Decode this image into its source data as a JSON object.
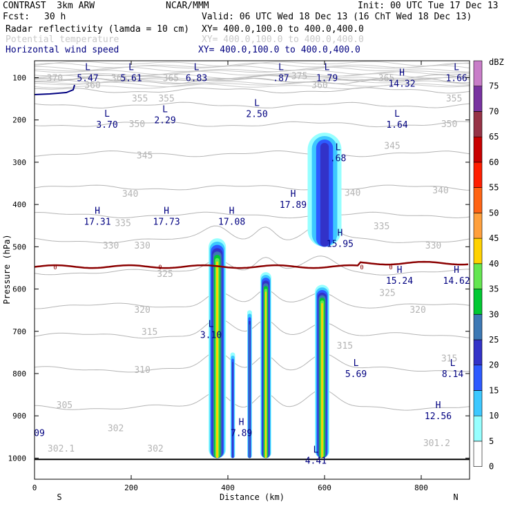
{
  "header": {
    "model": "CONTRAST  3km ARW",
    "org": "NCAR/MMM",
    "init": "Init: 00 UTC Tue 17 Dec 13",
    "fcst_label": "Fcst:",
    "fcst_value": "30 h",
    "valid": "Valid: 06 UTC Wed 18 Dec 13 (16 ChT Wed 18 Dec 13)",
    "fields": [
      {
        "name": "Radar reflectivity (lamda = 10 cm)",
        "xy": "XY= 400.0,100.0 to 400.0,400.0",
        "style": "black"
      },
      {
        "name": "Potential temperature",
        "xy": "XY= 400.0,100.0 to 400.0,400.0",
        "style": "dim"
      },
      {
        "name": "Horizontal wind speed",
        "xy": "XY= 400.0,100.0 to 400.0,400.0",
        "style": "blue"
      }
    ]
  },
  "chart_data": {
    "type": "cross-section",
    "xlabel": "Distance (km)",
    "ylabel": "Pressure (hPa)",
    "xlim": [
      0,
      900
    ],
    "ylim": [
      1050,
      60
    ],
    "xticks": [
      0,
      200,
      400,
      600,
      800
    ],
    "yticks": [
      100,
      200,
      300,
      400,
      500,
      600,
      700,
      800,
      900,
      1000
    ],
    "end_labels": {
      "left": "S",
      "right": "N"
    },
    "colorbar": {
      "unit": "dBZ",
      "levels": [
        "0",
        "5",
        "10",
        "15",
        "20",
        "25",
        "30",
        "35",
        "40",
        "45",
        "50",
        "55",
        "60",
        "65",
        "70",
        "75"
      ],
      "colors": [
        "#ffffff",
        "#96ffff",
        "#3cc8ff",
        "#2d5aff",
        "#3232c8",
        "#3c78b4",
        "#00c832",
        "#64e650",
        "#ffd200",
        "#ffa03c",
        "#ff6414",
        "#ff1e00",
        "#c80000",
        "#963246",
        "#7832a0",
        "#c87dc8"
      ]
    },
    "theta_contours": [
      {
        "value": "370",
        "p": 100
      },
      {
        "value": "365",
        "p": 108
      },
      {
        "value": "360",
        "p": 130
      },
      {
        "value": "355",
        "p": 165
      },
      {
        "value": "350",
        "p": 210
      },
      {
        "value": "345",
        "p": 280
      },
      {
        "value": "340",
        "p": 360
      },
      {
        "value": "335",
        "p": 425
      },
      {
        "value": "330",
        "p": 485
      },
      {
        "value": "325",
        "p": 560
      },
      {
        "value": "320",
        "p": 640
      },
      {
        "value": "315",
        "p": 710
      },
      {
        "value": "310",
        "p": 790
      },
      {
        "value": "305",
        "p": 880
      }
    ],
    "theta_labels": [
      {
        "text": "370",
        "x": 42,
        "p": 102
      },
      {
        "text": "365",
        "x": 175,
        "p": 102
      },
      {
        "text": "365",
        "x": 282,
        "p": 102
      },
      {
        "text": "375",
        "x": 548,
        "p": 97
      },
      {
        "text": "365",
        "x": 728,
        "p": 102
      },
      {
        "text": "360",
        "x": 120,
        "p": 118
      },
      {
        "text": "360",
        "x": 590,
        "p": 118
      },
      {
        "text": "355",
        "x": 218,
        "p": 150
      },
      {
        "text": "355",
        "x": 273,
        "p": 150
      },
      {
        "text": "355",
        "x": 868,
        "p": 150
      },
      {
        "text": "350",
        "x": 212,
        "p": 210
      },
      {
        "text": "350",
        "x": 858,
        "p": 210
      },
      {
        "text": "345",
        "x": 228,
        "p": 285
      },
      {
        "text": "345",
        "x": 740,
        "p": 262
      },
      {
        "text": "340",
        "x": 198,
        "p": 375
      },
      {
        "text": "340",
        "x": 658,
        "p": 373
      },
      {
        "text": "340",
        "x": 840,
        "p": 367
      },
      {
        "text": "335",
        "x": 183,
        "p": 445
      },
      {
        "text": "335",
        "x": 718,
        "p": 452
      },
      {
        "text": "330",
        "x": 158,
        "p": 498
      },
      {
        "text": "330",
        "x": 223,
        "p": 498
      },
      {
        "text": "330",
        "x": 825,
        "p": 498
      },
      {
        "text": "325",
        "x": 270,
        "p": 565
      },
      {
        "text": "325",
        "x": 730,
        "p": 610
      },
      {
        "text": "320",
        "x": 223,
        "p": 650
      },
      {
        "text": "320",
        "x": 793,
        "p": 650
      },
      {
        "text": "315",
        "x": 238,
        "p": 702
      },
      {
        "text": "315",
        "x": 642,
        "p": 735
      },
      {
        "text": "315",
        "x": 858,
        "p": 765
      },
      {
        "text": "310",
        "x": 223,
        "p": 792
      },
      {
        "text": "305",
        "x": 62,
        "p": 875
      },
      {
        "text": "302",
        "x": 168,
        "p": 930
      },
      {
        "text": "302",
        "x": 250,
        "p": 978
      },
      {
        "text": "302.1",
        "x": 55,
        "p": 978
      },
      {
        "text": "301.2",
        "x": 832,
        "p": 965
      }
    ],
    "zero_line": {
      "label": "0",
      "p": 547
    },
    "wind_extrema": [
      {
        "kind": "L",
        "value": "5.47",
        "x": 110,
        "p": 95
      },
      {
        "kind": "L",
        "value": "5.61",
        "x": 200,
        "p": 95
      },
      {
        "kind": "L",
        "value": "6.83",
        "x": 335,
        "p": 95
      },
      {
        "kind": "L",
        "value": ".87",
        "x": 510,
        "p": 95
      },
      {
        "kind": "L",
        "value": "1.79",
        "x": 605,
        "p": 95
      },
      {
        "kind": "H",
        "value": "14.32",
        "x": 760,
        "p": 108
      },
      {
        "kind": "L",
        "value": "1.66",
        "x": 873,
        "p": 95
      },
      {
        "kind": "L",
        "value": "3.70",
        "x": 150,
        "p": 205
      },
      {
        "kind": "L",
        "value": "2.29",
        "x": 270,
        "p": 195
      },
      {
        "kind": "L",
        "value": "2.50",
        "x": 460,
        "p": 180
      },
      {
        "kind": "L",
        "value": "1.64",
        "x": 750,
        "p": 205
      },
      {
        "kind": "L",
        "value": ".68",
        "x": 628,
        "p": 285
      },
      {
        "kind": "H",
        "value": "17.89",
        "x": 535,
        "p": 395
      },
      {
        "kind": "H",
        "value": "17.31",
        "x": 130,
        "p": 435
      },
      {
        "kind": "H",
        "value": "17.73",
        "x": 273,
        "p": 435
      },
      {
        "kind": "H",
        "value": "17.08",
        "x": 408,
        "p": 435
      },
      {
        "kind": "H",
        "value": "15.95",
        "x": 632,
        "p": 487
      },
      {
        "kind": "H",
        "value": "15.24",
        "x": 755,
        "p": 575
      },
      {
        "kind": "H",
        "value": "14.62",
        "x": 873,
        "p": 575
      },
      {
        "kind": "L",
        "value": "3.10",
        "x": 365,
        "p": 703
      },
      {
        "kind": "L",
        "value": "5.69",
        "x": 665,
        "p": 795
      },
      {
        "kind": "L",
        "value": "8.14",
        "x": 865,
        "p": 795
      },
      {
        "kind": "H",
        "value": "12.56",
        "x": 835,
        "p": 895
      },
      {
        "kind": "H",
        "value": "7.89",
        "x": 428,
        "p": 935
      },
      {
        "kind": "",
        "value": "09",
        "x": 10,
        "p": 935
      },
      {
        "kind": "L",
        "value": "4.41",
        "x": 582,
        "p": 1000
      }
    ],
    "reflectivity_cells": [
      {
        "x0": 360,
        "x1": 396,
        "ptop": 480,
        "pbot": 1000,
        "core_dbz": 40
      },
      {
        "x0": 405,
        "x1": 415,
        "ptop": 750,
        "pbot": 1000,
        "core_dbz": 20
      },
      {
        "x0": 440,
        "x1": 450,
        "ptop": 650,
        "pbot": 1000,
        "core_dbz": 25
      },
      {
        "x0": 467,
        "x1": 490,
        "ptop": 560,
        "pbot": 1000,
        "core_dbz": 40
      },
      {
        "x0": 580,
        "x1": 610,
        "ptop": 590,
        "pbot": 1000,
        "core_dbz": 40
      },
      {
        "x0": 565,
        "x1": 635,
        "ptop": 230,
        "pbot": 500,
        "core_dbz": 20
      }
    ]
  }
}
